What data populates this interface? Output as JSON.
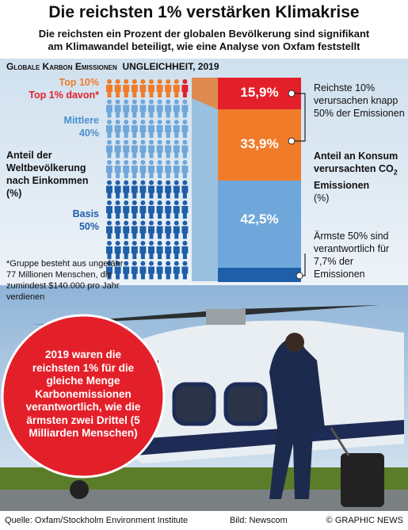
{
  "header": {
    "title": "Die reichsten 1% verstärken Klimakrise",
    "subtitle": [
      "Die reichsten ein Prozent der globalen Bevölkerung sind signifikant",
      "am Klimawandel beteiligt, wie eine Analyse von Oxfam feststellt"
    ]
  },
  "graphic": {
    "heading": "Globale Karbon Emissionen",
    "heading_tail": "UNGLEICHHEIT, 2019",
    "groups": {
      "top10": "Top 10%",
      "top1": "Top 1% davon*",
      "middle": [
        "Mittlere",
        "40%"
      ],
      "base": [
        "Basis",
        "50%"
      ]
    },
    "population_label": "Anteil der Weltbevölkerung nach Einkommen (%)",
    "footnote": "*Gruppe besteht aus ungefähr 77 Millionen Menschen, die zumindest $140.000 pro Jahr verdienen",
    "bar_labels": [
      "15,9%",
      "33,9%",
      "42,5%"
    ],
    "notes": {
      "rich": "Reichste 10% verursachen knapp 50% der Emissionen",
      "axis": [
        "Anteil an Konsum verursachten CO",
        "2",
        " Emissionen",
        "(%)"
      ],
      "poor": "Ärmste 50% sind verantwortlich für 7,7% der Emissionen"
    }
  },
  "callout": "2019 waren die reichsten 1% für die gleiche Menge Karbonemissionen verantwortlich, wie die ärmsten zwei Drittel (5 Milliarden Menschen)",
  "footer": {
    "source": "Quelle: Oxfam/Stockholm Environment Institute",
    "photo": "Bild: Newscom",
    "copyright": "© GRAPHIC NEWS"
  }
}
